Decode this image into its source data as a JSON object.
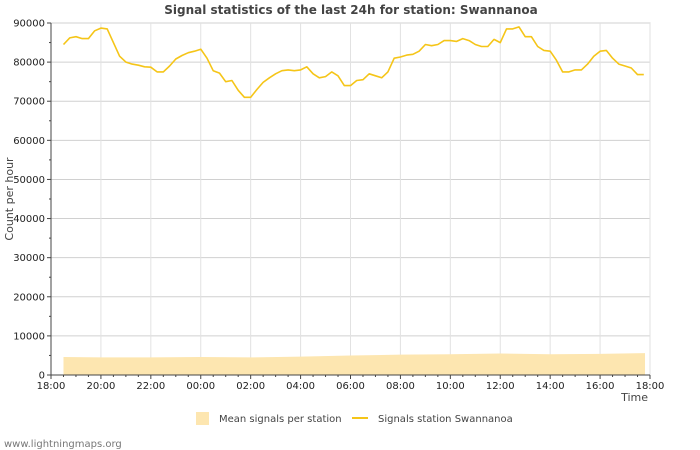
{
  "chart_data": {
    "type": "line",
    "title": "Signal statistics of the last 24h for station: Swannanoa",
    "xlabel": "Time",
    "ylabel": "Count per hour",
    "ylim": [
      0,
      90000
    ],
    "y_ticks": [
      0,
      10000,
      20000,
      30000,
      40000,
      50000,
      60000,
      70000,
      80000,
      90000
    ],
    "x_range_hours": [
      0,
      24
    ],
    "x_ticks": [
      {
        "h": 0,
        "label": "18:00"
      },
      {
        "h": 2,
        "label": "20:00"
      },
      {
        "h": 4,
        "label": "22:00"
      },
      {
        "h": 6,
        "label": "00:00"
      },
      {
        "h": 8,
        "label": "02:00"
      },
      {
        "h": 10,
        "label": "04:00"
      },
      {
        "h": 12,
        "label": "06:00"
      },
      {
        "h": 14,
        "label": "08:00"
      },
      {
        "h": 16,
        "label": "10:00"
      },
      {
        "h": 18,
        "label": "12:00"
      },
      {
        "h": 20,
        "label": "14:00"
      },
      {
        "h": 22,
        "label": "16:00"
      },
      {
        "h": 24,
        "label": "18:00"
      }
    ],
    "grid": true,
    "legend_position": "bottom",
    "series": [
      {
        "name": "Mean signals per station",
        "kind": "area",
        "color": "#fde6b0",
        "x": [
          0.5,
          2,
          4,
          6,
          8,
          10,
          12,
          14,
          16,
          18,
          20,
          22,
          23.8
        ],
        "y": [
          4600,
          4500,
          4500,
          4600,
          4500,
          4700,
          5000,
          5200,
          5300,
          5500,
          5300,
          5400,
          5600
        ]
      },
      {
        "name": "Signals station Swannanoa",
        "kind": "line",
        "color": "#f5c518",
        "x": [
          0.5,
          0.75,
          1.0,
          1.25,
          1.5,
          1.75,
          2.0,
          2.25,
          2.5,
          2.75,
          3.0,
          3.25,
          3.5,
          3.75,
          4.0,
          4.25,
          4.5,
          4.75,
          5.0,
          5.25,
          5.5,
          5.75,
          6.0,
          6.25,
          6.5,
          6.75,
          7.0,
          7.25,
          7.5,
          7.75,
          8.0,
          8.25,
          8.5,
          8.75,
          9.0,
          9.25,
          9.5,
          9.75,
          10.0,
          10.25,
          10.5,
          10.75,
          11.0,
          11.25,
          11.5,
          11.75,
          12.0,
          12.25,
          12.5,
          12.75,
          13.0,
          13.25,
          13.5,
          13.75,
          14.0,
          14.25,
          14.5,
          14.75,
          15.0,
          15.25,
          15.5,
          15.75,
          16.0,
          16.25,
          16.5,
          16.75,
          17.0,
          17.25,
          17.5,
          17.75,
          18.0,
          18.25,
          18.5,
          18.75,
          19.0,
          19.25,
          19.5,
          19.75,
          20.0,
          20.25,
          20.5,
          20.75,
          21.0,
          21.25,
          21.5,
          21.75,
          22.0,
          22.25,
          22.5,
          22.75,
          23.0,
          23.25,
          23.5,
          23.75
        ],
        "y": [
          84500,
          86200,
          86500,
          86000,
          86000,
          88000,
          88700,
          88500,
          85000,
          81500,
          80000,
          79500,
          79200,
          78800,
          78700,
          77500,
          77500,
          79000,
          80800,
          81700,
          82400,
          82800,
          83300,
          81000,
          77800,
          77200,
          75000,
          75300,
          72800,
          71000,
          71000,
          73000,
          74800,
          76000,
          77000,
          77800,
          78000,
          77800,
          78000,
          78800,
          77000,
          76000,
          76300,
          77500,
          76500,
          74000,
          74000,
          75300,
          75500,
          77000,
          76500,
          76000,
          77500,
          81000,
          81300,
          81800,
          82000,
          82800,
          84500,
          84200,
          84500,
          85500,
          85500,
          85300,
          86000,
          85500,
          84500,
          84000,
          84000,
          85800,
          85000,
          88500,
          88500,
          89000,
          86500,
          86500,
          84000,
          83000,
          82800,
          80500,
          77500,
          77500,
          78000,
          78000,
          79500,
          81500,
          82800,
          83000,
          81000,
          79500,
          79000,
          78500,
          76800,
          76800
        ]
      }
    ]
  },
  "watermark": "www.lightningmaps.org"
}
